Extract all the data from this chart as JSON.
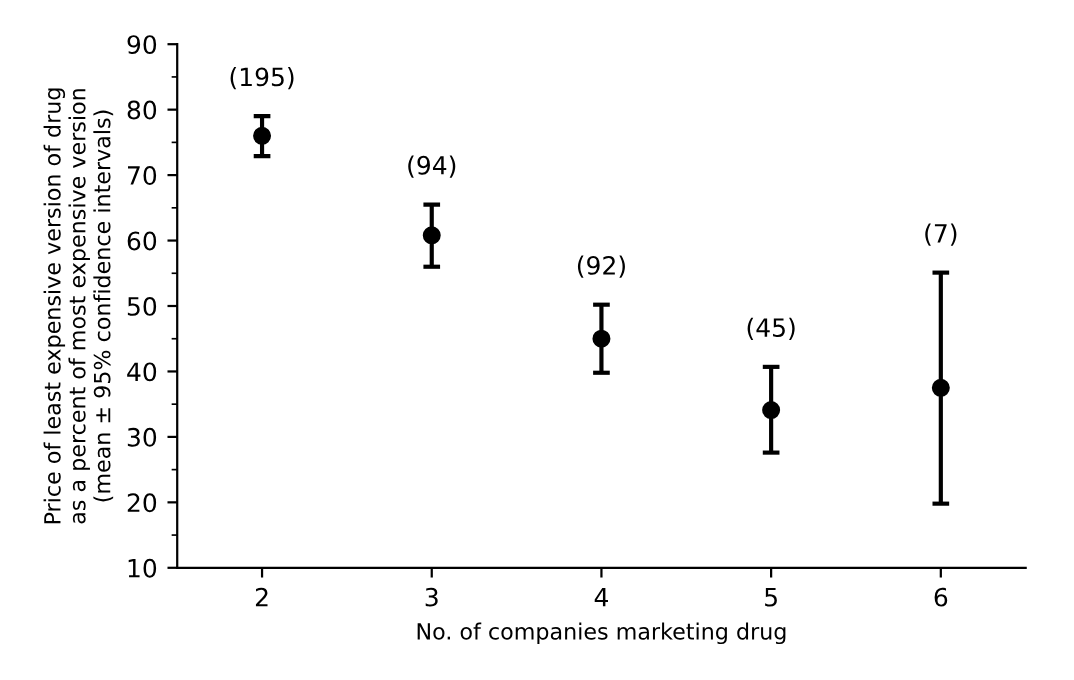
{
  "chart_data": {
    "type": "scatter",
    "xlabel": "No. of companies marketing drug",
    "ylabel": "Price of least expensive version of drug\nas a percent of most expensive version\n(mean ± 95% confidence intervals)",
    "x": [
      2,
      3,
      4,
      5,
      6
    ],
    "values": [
      76,
      60.8,
      45,
      34.1,
      37.5
    ],
    "errors": [
      [
        72.9,
        79
      ],
      [
        56,
        65.5
      ],
      [
        39.8,
        50.2
      ],
      [
        27.6,
        40.7
      ],
      [
        19.8,
        55.1
      ]
    ],
    "color": "#000000",
    "marker": "circle",
    "xlim": [
      1.5,
      6.5
    ],
    "xticks": [
      2,
      3,
      4,
      5,
      6
    ],
    "ylim": [
      10,
      90
    ],
    "yticks": [
      10,
      20,
      30,
      40,
      50,
      60,
      70,
      80,
      90
    ],
    "grid": false,
    "annotations": [
      {
        "text": "(195)",
        "x": 2,
        "y": 79
      },
      {
        "text": "(94)",
        "x": 3,
        "y": 65.5
      },
      {
        "text": "(92)",
        "x": 4,
        "y": 50.2
      },
      {
        "text": "(45)",
        "x": 5,
        "y": 40.7
      },
      {
        "text": "(7)",
        "x": 6,
        "y": 55.1
      }
    ]
  }
}
